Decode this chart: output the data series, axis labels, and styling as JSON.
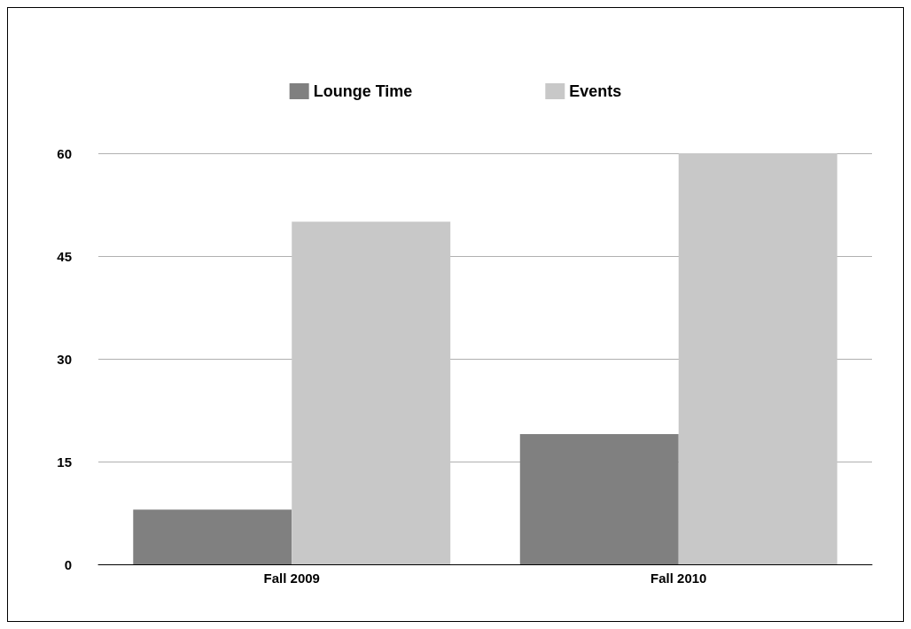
{
  "chart_data": {
    "type": "bar",
    "categories": [
      "Fall 2009",
      "Fall 2010"
    ],
    "series": [
      {
        "name": "Lounge Time",
        "color": "#808080",
        "values": [
          8,
          19
        ]
      },
      {
        "name": "Events",
        "color": "#c8c8c8",
        "values": [
          50,
          60
        ]
      }
    ],
    "ylim": [
      0,
      60
    ],
    "yticks": [
      0,
      15,
      30,
      45,
      60
    ],
    "grid": "y",
    "legend": "top"
  }
}
